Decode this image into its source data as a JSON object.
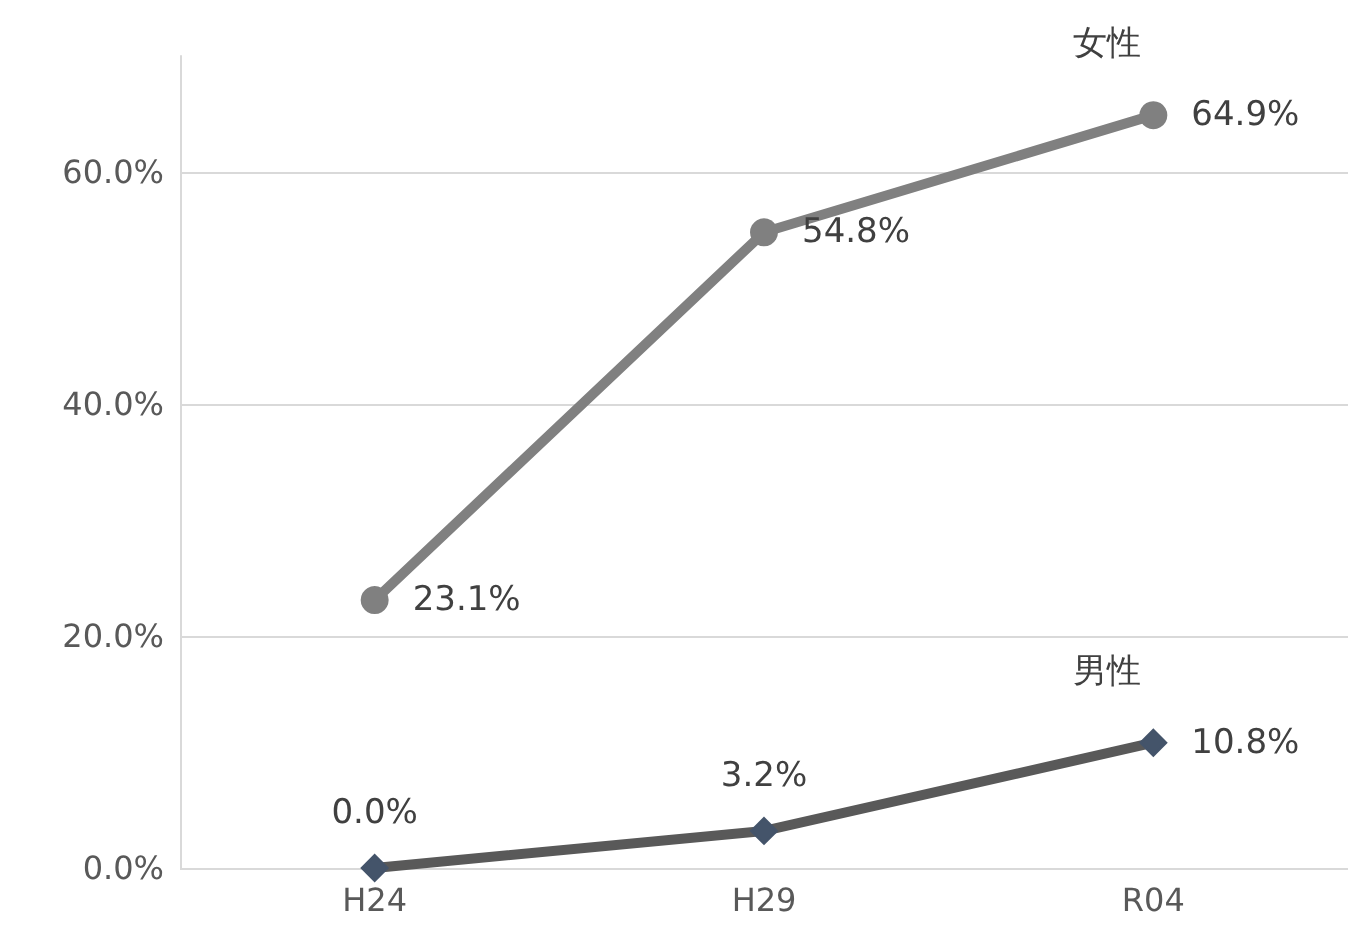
{
  "chart_data": {
    "type": "line",
    "categories": [
      "H24",
      "H29",
      "R04"
    ],
    "series": [
      {
        "name": "女性",
        "color": "#808080",
        "marker": "circle",
        "values": [
          23.1,
          54.8,
          64.9
        ],
        "value_labels": [
          "23.1%",
          "54.8%",
          "64.9%"
        ]
      },
      {
        "name": "男性",
        "color": "#595959",
        "marker": "diamond",
        "values": [
          0.0,
          3.2,
          10.8
        ],
        "value_labels": [
          "0.0%",
          "3.2%",
          "10.8%"
        ]
      }
    ],
    "ylim": [
      0,
      70
    ],
    "yticks": [
      {
        "value": 0,
        "label": "0.0%"
      },
      {
        "value": 20,
        "label": "20.0%"
      },
      {
        "value": 40,
        "label": "40.0%"
      },
      {
        "value": 60,
        "label": "60.0%"
      }
    ],
    "grid": "y",
    "legend": false
  }
}
